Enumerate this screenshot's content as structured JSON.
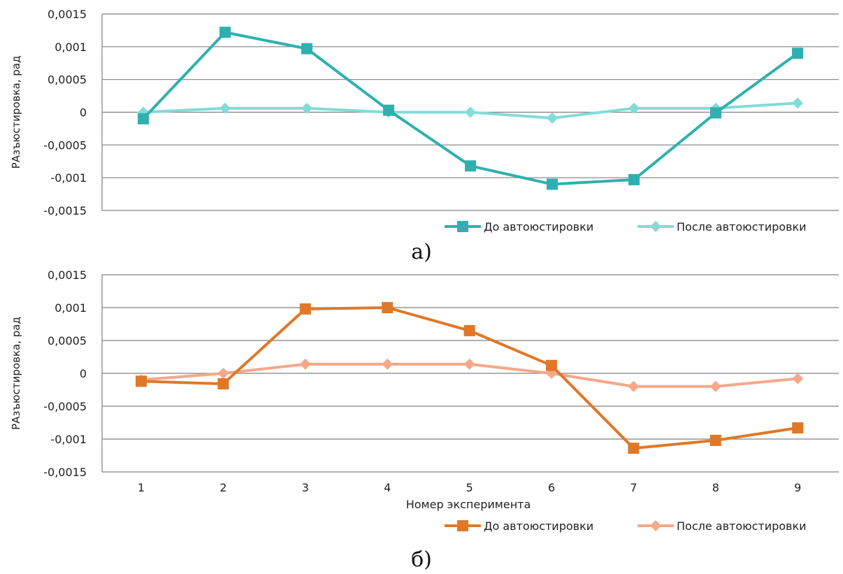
{
  "chart_data": [
    {
      "type": "line",
      "caption": "а)",
      "title": "",
      "xlabel": "",
      "ylabel": "РАзъюстировка, рад",
      "ylim": [
        -0.0015,
        0.0015
      ],
      "y_ticks": [
        "0,0015",
        "0,001",
        "0,0005",
        "0",
        "-0,0005",
        "-0,001",
        "-0,0015"
      ],
      "x": [
        1,
        2,
        3,
        4,
        5,
        6,
        7,
        8,
        9
      ],
      "x_tick_labels": [],
      "grid": "horizontal",
      "legend": "bottom-right",
      "series": [
        {
          "name": "До автоюстировки",
          "marker": "square",
          "color": "#2fb0b0",
          "values": [
            -0.0001,
            0.00122,
            0.00097,
            3e-05,
            -0.00082,
            -0.0011,
            -0.00103,
            -1e-05,
            0.0009
          ]
        },
        {
          "name": "После автоюстировки",
          "marker": "diamond",
          "color": "#82dcd8",
          "values": [
            0.0,
            6e-05,
            6e-05,
            0.0,
            0.0,
            -9e-05,
            6e-05,
            6e-05,
            0.00014
          ]
        }
      ]
    },
    {
      "type": "line",
      "caption": "б)",
      "title": "",
      "xlabel": "Номер эксперимента",
      "ylabel": "РАзъюстировка, рад",
      "ylim": [
        -0.0015,
        0.0015
      ],
      "y_ticks": [
        "0,0015",
        "0,001",
        "0,0005",
        "0",
        "-0,0005",
        "-0,001",
        "-0,0015"
      ],
      "x": [
        1,
        2,
        3,
        4,
        5,
        6,
        7,
        8,
        9
      ],
      "x_tick_labels": [
        "1",
        "2",
        "3",
        "4",
        "5",
        "6",
        "7",
        "8",
        "9"
      ],
      "grid": "horizontal",
      "legend": "bottom-right",
      "series": [
        {
          "name": "До автоюстировки",
          "marker": "square",
          "color": "#e07828",
          "values": [
            -0.00012,
            -0.00016,
            0.00098,
            0.001,
            0.00065,
            0.00012,
            -0.00114,
            -0.00102,
            -0.00083
          ]
        },
        {
          "name": "После автоюстировки",
          "marker": "diamond",
          "color": "#f5a88a",
          "values": [
            -0.0001,
            0.0,
            0.00014,
            0.00014,
            0.00014,
            0.0,
            -0.0002,
            -0.0002,
            -8e-05
          ]
        }
      ]
    }
  ]
}
